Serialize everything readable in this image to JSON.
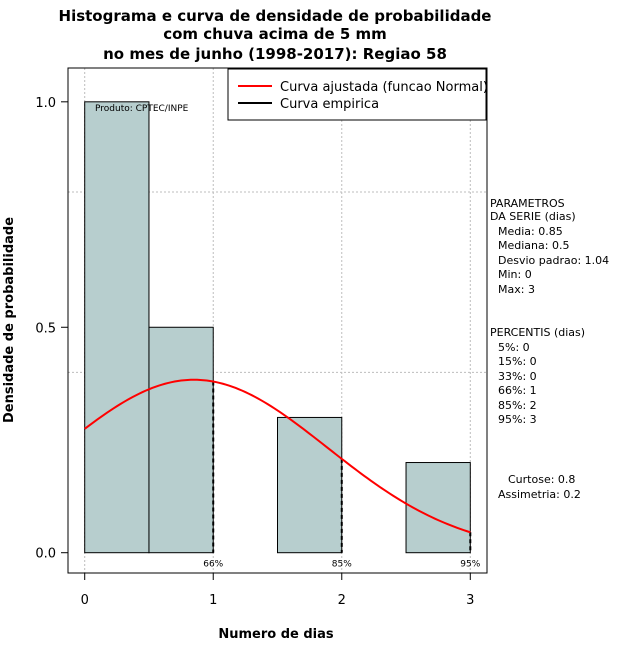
{
  "chart_data": {
    "type": "bar",
    "title_lines": [
      "Histograma e curva de densidade de probabilidade",
      "com chuva acima de 5 mm",
      "no mes de junho (1998-2017): Regiao 58"
    ],
    "xlabel": "Numero de dias",
    "ylabel": "Densidade de probabilidade",
    "xlim": [
      -0.13,
      3.13
    ],
    "ylim": [
      -0.045,
      1.075
    ],
    "xticks": [
      0,
      1,
      2,
      3
    ],
    "xtick_labels": [
      "0",
      "1",
      "2",
      "3"
    ],
    "yticks": [
      0.0,
      0.5,
      1.0
    ],
    "ytick_labels": [
      "0.0",
      "0.5",
      "1.0"
    ],
    "grid": true,
    "bins": [
      {
        "start": 0.0,
        "end": 0.5,
        "density": 1.0
      },
      {
        "start": 0.5,
        "end": 1.0,
        "density": 0.5
      },
      {
        "start": 1.5,
        "end": 2.0,
        "density": 0.3
      },
      {
        "start": 2.5,
        "end": 3.0,
        "density": 0.2
      }
    ],
    "bar_color": "#b7cece",
    "normal_curve": {
      "mean": 0.85,
      "sd": 1.04,
      "color": "#ff0000"
    },
    "percentile_lines": [
      {
        "x": 1,
        "label": "66%"
      },
      {
        "x": 2,
        "label": "85%"
      },
      {
        "x": 3,
        "label": "95%"
      }
    ],
    "legend": {
      "position": "top-right",
      "entries": [
        {
          "label": "Curva ajustada (funcao Normal)",
          "color": "#ff0000"
        },
        {
          "label": "Curva empirica",
          "color": "#000000"
        }
      ]
    },
    "credit": "Produto: CPTEC/INPE"
  },
  "stats": {
    "param_title_1": "PARAMETROS",
    "param_title_2": "DA SERIE (dias)",
    "params": [
      "Media: 0.85",
      "Mediana: 0.5",
      "Desvio padrao: 1.04",
      "Min: 0",
      "Max: 3"
    ],
    "perc_title": "PERCENTIS (dias)",
    "percentis": [
      "5%: 0",
      "15%: 0",
      "33%: 0",
      "66%: 1",
      "85%: 2",
      "95%: 3"
    ],
    "curtose": "Curtose: 0.8",
    "assimetria": "Assimetria: 0.2"
  }
}
